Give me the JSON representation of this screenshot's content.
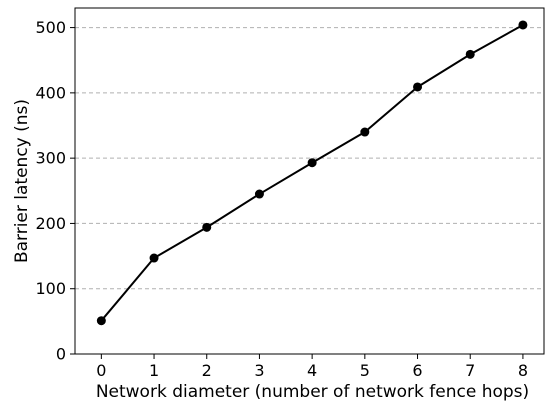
{
  "chart_data": {
    "type": "line",
    "title": "",
    "xlabel": "Network diameter (number of network fence hops)",
    "ylabel": "Barrier latency (ns)",
    "x": [
      0,
      1,
      2,
      3,
      4,
      5,
      6,
      7,
      8
    ],
    "series": [
      {
        "values": [
          51,
          147,
          194,
          245,
          293,
          340,
          409,
          459,
          504
        ],
        "color": "#000000",
        "marker": "circle"
      }
    ],
    "xlim": [
      -0.5,
      8.4
    ],
    "ylim": [
      0,
      530
    ],
    "xticks": [
      0,
      1,
      2,
      3,
      4,
      5,
      6,
      7,
      8
    ],
    "xtick_labels": [
      "0",
      "1",
      "2",
      "3",
      "4",
      "5",
      "6",
      "7",
      "8"
    ],
    "yticks": [
      0,
      100,
      200,
      300,
      400,
      500
    ],
    "ytick_labels": [
      "0",
      "100",
      "200",
      "300",
      "400",
      "500"
    ],
    "grid": {
      "y": true,
      "x": false,
      "style": "dashed",
      "color": "#b0b0b0"
    },
    "legend": "none"
  }
}
